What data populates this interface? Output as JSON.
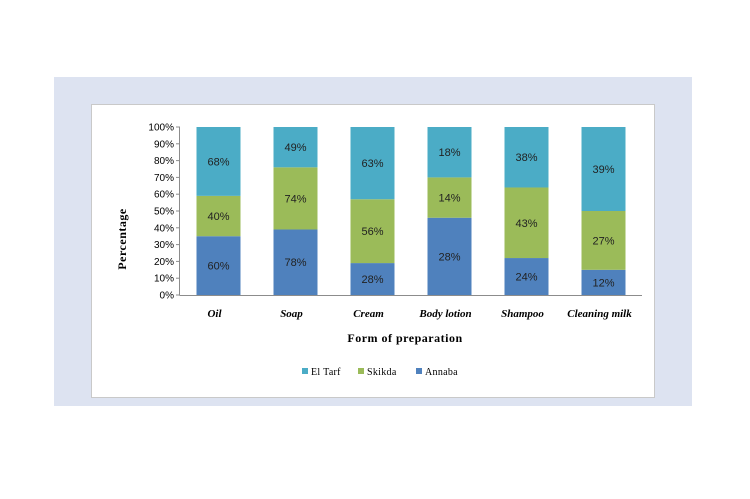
{
  "chart_data": {
    "type": "bar",
    "stacked": true,
    "percent_stacked": true,
    "xlabel": "Form of preparation",
    "ylabel": "Percentage",
    "ylim": [
      0,
      100
    ],
    "yticks": [
      "0%",
      "10%",
      "20%",
      "30%",
      "40%",
      "50%",
      "60%",
      "70%",
      "80%",
      "90%",
      "100%"
    ],
    "categories": [
      "Oil",
      "Soap",
      "Cream",
      "Body lotion",
      "Shampoo",
      "Cleaning milk"
    ],
    "series": [
      {
        "name": "Annaba",
        "color": "#4f81bd",
        "values": [
          35,
          39,
          19,
          46,
          22,
          15
        ],
        "labels": [
          "60%",
          "78%",
          "28%",
          "28%",
          "24%",
          "12%"
        ]
      },
      {
        "name": "Skikda",
        "color": "#9bbb59",
        "values": [
          24,
          37,
          38,
          24,
          42,
          35
        ],
        "labels": [
          "40%",
          "74%",
          "56%",
          "14%",
          "43%",
          "27%"
        ]
      },
      {
        "name": "El Tarf",
        "color": "#4bacc6",
        "values": [
          41,
          24,
          43,
          30,
          36,
          50
        ],
        "labels": [
          "68%",
          "49%",
          "63%",
          "18%",
          "38%",
          "39%"
        ]
      }
    ],
    "legend": {
      "position": "bottom",
      "order": [
        "El Tarf",
        "Skikda",
        "Annaba"
      ]
    },
    "grid": false
  }
}
